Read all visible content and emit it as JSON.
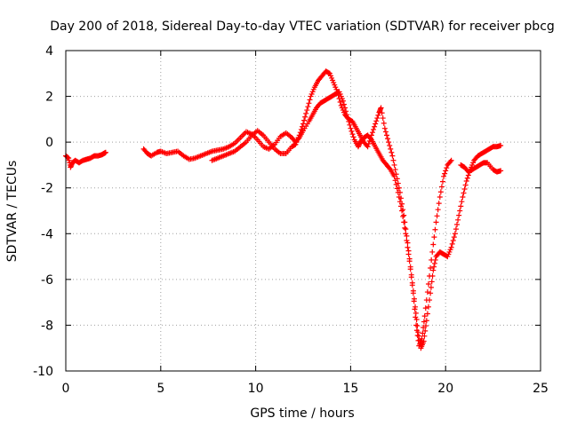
{
  "chart_data": {
    "type": "scatter",
    "title": "Day 200 of 2018, Sidereal Day-to-day VTEC variation (SDTVAR) for receiver pbcg",
    "xlabel": "GPS time / hours",
    "ylabel": "SDTVAR / TECUs",
    "xlim": [
      0,
      25
    ],
    "ylim": [
      -10,
      4
    ],
    "xticks": [
      0,
      5,
      10,
      15,
      20,
      25
    ],
    "yticks": [
      -10,
      -8,
      -6,
      -4,
      -2,
      0,
      2,
      4
    ],
    "grid": true,
    "marker": "plus",
    "color": "#ff0000",
    "series": [
      {
        "points": [
          [
            0.0,
            -0.6
          ],
          [
            0.15,
            -0.7
          ],
          [
            0.25,
            -1.1
          ],
          [
            0.35,
            -0.9
          ],
          [
            0.5,
            -0.8
          ],
          [
            0.7,
            -0.9
          ],
          [
            0.9,
            -0.8
          ],
          [
            1.1,
            -0.75
          ],
          [
            1.3,
            -0.7
          ],
          [
            1.5,
            -0.6
          ],
          [
            1.7,
            -0.6
          ],
          [
            1.9,
            -0.55
          ],
          [
            2.0,
            -0.5
          ],
          [
            2.1,
            -0.45
          ],
          [
            4.1,
            -0.3
          ],
          [
            4.3,
            -0.5
          ],
          [
            4.5,
            -0.6
          ],
          [
            4.8,
            -0.45
          ],
          [
            5.0,
            -0.4
          ],
          [
            5.3,
            -0.5
          ],
          [
            5.6,
            -0.45
          ],
          [
            5.9,
            -0.4
          ],
          [
            6.2,
            -0.6
          ],
          [
            6.5,
            -0.75
          ],
          [
            6.8,
            -0.7
          ],
          [
            7.1,
            -0.6
          ],
          [
            7.4,
            -0.5
          ],
          [
            7.7,
            -0.4
          ],
          [
            8.0,
            -0.35
          ],
          [
            8.3,
            -0.3
          ],
          [
            8.6,
            -0.2
          ],
          [
            8.9,
            -0.05
          ],
          [
            9.2,
            0.2
          ],
          [
            9.5,
            0.45
          ],
          [
            9.8,
            0.35
          ],
          [
            10.1,
            0.1
          ],
          [
            10.4,
            -0.2
          ],
          [
            10.7,
            -0.3
          ],
          [
            11.0,
            -0.1
          ],
          [
            11.3,
            0.25
          ],
          [
            11.6,
            0.4
          ],
          [
            11.9,
            0.2
          ],
          [
            12.1,
            0.0
          ],
          [
            12.3,
            0.2
          ],
          [
            12.5,
            0.5
          ],
          [
            12.8,
            0.9
          ],
          [
            13.0,
            1.2
          ],
          [
            13.2,
            1.5
          ],
          [
            13.4,
            1.7
          ],
          [
            13.6,
            1.8
          ],
          [
            13.8,
            1.9
          ],
          [
            14.0,
            2.0
          ],
          [
            14.2,
            2.1
          ],
          [
            14.4,
            2.2
          ],
          [
            14.6,
            1.8
          ],
          [
            14.8,
            1.2
          ],
          [
            15.0,
            0.6
          ],
          [
            15.2,
            0.1
          ],
          [
            15.4,
            -0.2
          ],
          [
            15.5,
            0.0
          ],
          [
            15.7,
            0.2
          ],
          [
            15.9,
            0.3
          ],
          [
            16.1,
            0.1
          ],
          [
            16.3,
            -0.2
          ],
          [
            16.5,
            -0.5
          ],
          [
            16.7,
            -0.8
          ],
          [
            16.9,
            -1.0
          ],
          [
            17.1,
            -1.2
          ],
          [
            17.3,
            -1.5
          ],
          [
            17.5,
            -2.2
          ],
          [
            17.7,
            -3.0
          ],
          [
            17.9,
            -4.0
          ],
          [
            18.1,
            -5.2
          ],
          [
            18.3,
            -6.6
          ],
          [
            18.45,
            -8.0
          ],
          [
            18.6,
            -8.9
          ],
          [
            18.75,
            -8.6
          ],
          [
            18.9,
            -7.6
          ],
          [
            19.1,
            -6.2
          ],
          [
            19.3,
            -4.8
          ],
          [
            19.5,
            -3.5
          ],
          [
            19.7,
            -2.4
          ],
          [
            19.9,
            -1.5
          ],
          [
            20.1,
            -1.0
          ],
          [
            20.3,
            -0.8
          ]
        ]
      },
      {
        "points": [
          [
            7.7,
            -0.8
          ],
          [
            8.0,
            -0.7
          ],
          [
            8.3,
            -0.6
          ],
          [
            8.6,
            -0.5
          ],
          [
            8.9,
            -0.4
          ],
          [
            9.2,
            -0.2
          ],
          [
            9.5,
            0.0
          ],
          [
            9.8,
            0.3
          ],
          [
            10.1,
            0.5
          ],
          [
            10.4,
            0.3
          ],
          [
            10.7,
            0.0
          ],
          [
            11.0,
            -0.3
          ],
          [
            11.3,
            -0.5
          ],
          [
            11.6,
            -0.5
          ],
          [
            11.9,
            -0.2
          ],
          [
            12.1,
            -0.1
          ],
          [
            12.3,
            0.3
          ],
          [
            12.5,
            0.8
          ],
          [
            12.7,
            1.4
          ],
          [
            12.9,
            2.0
          ],
          [
            13.1,
            2.4
          ],
          [
            13.3,
            2.7
          ],
          [
            13.5,
            2.9
          ],
          [
            13.7,
            3.1
          ],
          [
            13.9,
            3.0
          ],
          [
            14.1,
            2.6
          ],
          [
            14.3,
            2.2
          ],
          [
            14.5,
            1.6
          ],
          [
            14.7,
            1.2
          ],
          [
            14.9,
            1.0
          ],
          [
            15.1,
            0.9
          ],
          [
            15.3,
            0.6
          ],
          [
            15.5,
            0.3
          ],
          [
            15.7,
            0.0
          ],
          [
            15.9,
            -0.2
          ],
          [
            16.1,
            0.3
          ],
          [
            16.3,
            0.8
          ],
          [
            16.5,
            1.3
          ],
          [
            16.6,
            1.5
          ],
          [
            16.8,
            0.6
          ],
          [
            17.0,
            0.0
          ],
          [
            17.2,
            -0.6
          ],
          [
            17.4,
            -1.4
          ],
          [
            17.6,
            -2.2
          ],
          [
            17.8,
            -3.2
          ],
          [
            18.0,
            -4.4
          ],
          [
            18.2,
            -5.8
          ],
          [
            18.4,
            -7.2
          ],
          [
            18.55,
            -8.3
          ],
          [
            18.7,
            -9.0
          ],
          [
            18.85,
            -8.7
          ],
          [
            19.0,
            -7.8
          ],
          [
            19.2,
            -6.6
          ],
          [
            19.35,
            -5.6
          ],
          [
            19.5,
            -5.0
          ],
          [
            19.7,
            -4.8
          ],
          [
            19.9,
            -4.9
          ],
          [
            20.1,
            -5.0
          ],
          [
            20.3,
            -4.6
          ],
          [
            20.5,
            -4.0
          ],
          [
            20.7,
            -3.2
          ],
          [
            20.9,
            -2.4
          ],
          [
            21.1,
            -1.7
          ],
          [
            21.3,
            -1.2
          ],
          [
            21.5,
            -0.8
          ],
          [
            21.7,
            -0.6
          ],
          [
            21.9,
            -0.5
          ],
          [
            22.1,
            -0.4
          ],
          [
            22.3,
            -0.3
          ],
          [
            22.5,
            -0.2
          ],
          [
            22.7,
            -0.2
          ],
          [
            22.9,
            -0.15
          ]
        ]
      },
      {
        "points": [
          [
            20.8,
            -1.0
          ],
          [
            21.0,
            -1.1
          ],
          [
            21.2,
            -1.3
          ],
          [
            21.4,
            -1.2
          ],
          [
            21.6,
            -1.1
          ],
          [
            21.8,
            -1.0
          ],
          [
            22.0,
            -0.9
          ],
          [
            22.2,
            -0.9
          ],
          [
            22.5,
            -1.2
          ],
          [
            22.7,
            -1.3
          ],
          [
            22.9,
            -1.25
          ]
        ]
      }
    ]
  }
}
